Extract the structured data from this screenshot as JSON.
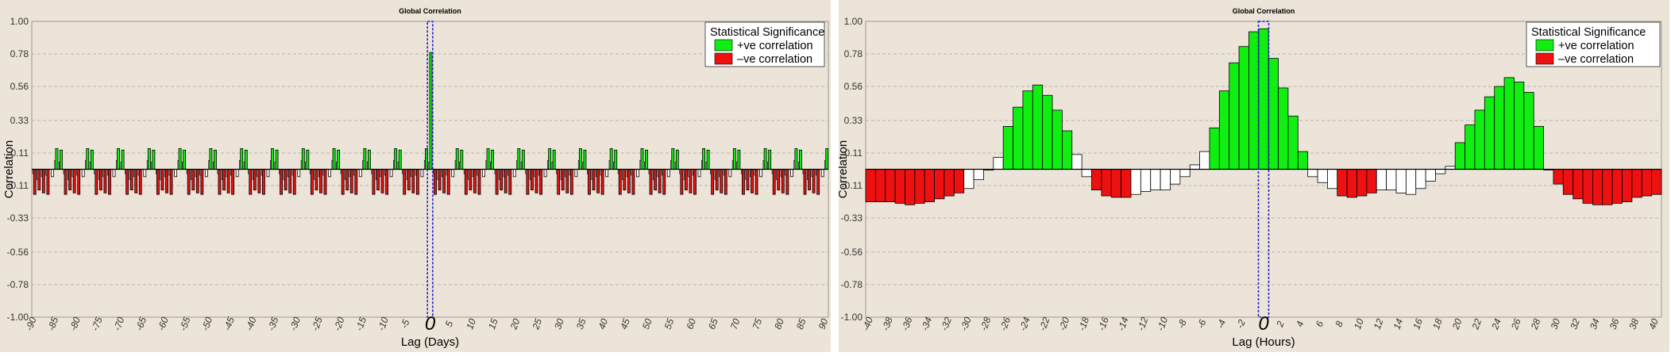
{
  "colors": {
    "background": "#ece4d8",
    "positive_significant": "#11ee11",
    "negative_significant": "#ee1111",
    "not_significant": "#ffffff",
    "zero_lag_box": "#2222cc",
    "grid": "#bdb5a9"
  },
  "chart_data": [
    {
      "type": "bar",
      "title": "Global Correlation",
      "xlabel": "Lag (Days)",
      "ylabel": "Correlation",
      "ylim": [
        -1.0,
        1.0
      ],
      "yticks": [
        "1.00",
        "0.78",
        "0.56",
        "0.33",
        "0.11",
        "-0.11",
        "-0.33",
        "-0.56",
        "-0.78",
        "-1.00"
      ],
      "xlim": [
        -90,
        90
      ],
      "xticks": [
        "-90",
        "-85",
        "-80",
        "-75",
        "-70",
        "-65",
        "-60",
        "-55",
        "-50",
        "-45",
        "-40",
        "-35",
        "-30",
        "-25",
        "-20",
        "-15",
        "-10",
        "-5",
        "0",
        "5",
        "10",
        "15",
        "20",
        "25",
        "30",
        "35",
        "40",
        "45",
        "50",
        "55",
        "60",
        "65",
        "70",
        "75",
        "80",
        "85",
        "90"
      ],
      "zero_lag_label": "0",
      "grid": "horizontal dashed",
      "legend": {
        "placement": "top-right",
        "title": "Statistical Significance",
        "entries": [
          "+ve correlation",
          "–ve correlation"
        ]
      },
      "note": "values repeat in a 7-day weekly cycle; the peak at lag 0 reaches about 0.79",
      "series_rule": "weekly",
      "x": [
        -90,
        90
      ],
      "peak": {
        "lag": 0,
        "value": 0.79
      }
    },
    {
      "type": "bar",
      "title": "Global Correlation",
      "xlabel": "Lag (Hours)",
      "ylabel": "Correlation",
      "ylim": [
        -1.0,
        1.0
      ],
      "yticks": [
        "1.00",
        "0.78",
        "0.56",
        "0.33",
        "0.11",
        "-0.11",
        "-0.33",
        "-0.56",
        "-0.78",
        "-1.00"
      ],
      "xlim": [
        -40,
        40
      ],
      "xticks": [
        "-40",
        "-38",
        "-36",
        "-34",
        "-32",
        "-30",
        "-28",
        "-26",
        "-24",
        "-22",
        "-20",
        "-18",
        "-16",
        "-14",
        "-12",
        "-10",
        "-8",
        "-6",
        "-4",
        "-2",
        "0",
        "2",
        "4",
        "6",
        "8",
        "10",
        "12",
        "14",
        "16",
        "18",
        "20",
        "22",
        "24",
        "26",
        "28",
        "30",
        "32",
        "34",
        "36",
        "38",
        "40"
      ],
      "zero_lag_label": "0",
      "grid": "horizontal dashed",
      "legend": {
        "placement": "top-right",
        "title": "Statistical Significance",
        "entries": [
          "+ve correlation",
          "–ve correlation"
        ]
      },
      "x": [
        -40,
        -39,
        -38,
        -37,
        -36,
        -35,
        -34,
        -33,
        -32,
        -31,
        -30,
        -29,
        -28,
        -27,
        -26,
        -25,
        -24,
        -23,
        -22,
        -21,
        -20,
        -19,
        -18,
        -17,
        -16,
        -15,
        -14,
        -13,
        -12,
        -11,
        -10,
        -9,
        -8,
        -7,
        -6,
        -5,
        -4,
        -3,
        -2,
        -1,
        0,
        1,
        2,
        3,
        4,
        5,
        6,
        7,
        8,
        9,
        10,
        11,
        12,
        13,
        14,
        15,
        16,
        17,
        18,
        19,
        20,
        21,
        22,
        23,
        24,
        25,
        26,
        27,
        28,
        29,
        30,
        31,
        32,
        33,
        34,
        35,
        36,
        37,
        38,
        39,
        40
      ],
      "values": [
        -0.22,
        -0.22,
        -0.22,
        -0.23,
        -0.24,
        -0.23,
        -0.22,
        -0.2,
        -0.18,
        -0.16,
        -0.13,
        -0.07,
        0.0,
        0.08,
        0.29,
        0.42,
        0.53,
        0.57,
        0.5,
        0.4,
        0.26,
        0.1,
        -0.05,
        -0.14,
        -0.18,
        -0.19,
        -0.19,
        -0.17,
        -0.15,
        -0.14,
        -0.14,
        -0.1,
        -0.05,
        0.03,
        0.12,
        0.28,
        0.53,
        0.72,
        0.83,
        0.93,
        0.95,
        0.75,
        0.55,
        0.36,
        0.12,
        -0.05,
        -0.09,
        -0.13,
        -0.18,
        -0.19,
        -0.18,
        -0.16,
        -0.14,
        -0.14,
        -0.16,
        -0.17,
        -0.13,
        -0.08,
        -0.03,
        0.02,
        0.18,
        0.3,
        0.4,
        0.49,
        0.56,
        0.62,
        0.59,
        0.52,
        0.29,
        0.0,
        -0.1,
        -0.17,
        -0.2,
        -0.23,
        -0.24,
        -0.24,
        -0.23,
        -0.22,
        -0.19,
        -0.18,
        -0.17
      ],
      "significance": [
        "neg",
        "neg",
        "neg",
        "neg",
        "neg",
        "neg",
        "neg",
        "neg",
        "neg",
        "neg",
        "ns",
        "ns",
        "ns",
        "ns",
        "pos",
        "pos",
        "pos",
        "pos",
        "pos",
        "pos",
        "pos",
        "ns",
        "ns",
        "neg",
        "neg",
        "neg",
        "neg",
        "ns",
        "ns",
        "ns",
        "ns",
        "ns",
        "ns",
        "ns",
        "ns",
        "pos",
        "pos",
        "pos",
        "pos",
        "pos",
        "pos",
        "pos",
        "pos",
        "pos",
        "pos",
        "ns",
        "ns",
        "ns",
        "neg",
        "neg",
        "neg",
        "neg",
        "ns",
        "ns",
        "ns",
        "ns",
        "ns",
        "ns",
        "ns",
        "ns",
        "pos",
        "pos",
        "pos",
        "pos",
        "pos",
        "pos",
        "pos",
        "pos",
        "pos",
        "ns",
        "neg",
        "neg",
        "neg",
        "neg",
        "neg",
        "neg",
        "neg",
        "neg",
        "neg",
        "neg",
        "neg"
      ]
    }
  ],
  "daily_pattern": {
    "weekly_values": [
      0.13,
      -0.17,
      -0.14,
      -0.16,
      -0.17,
      -0.05,
      0.14
    ],
    "weekly_outline": [
      0.05,
      -0.03,
      -0.07,
      -0.05,
      -0.04,
      0.0,
      0.06
    ],
    "weekly_significance": [
      "pos",
      "neg",
      "neg",
      "neg",
      "neg",
      "ns",
      "pos"
    ]
  }
}
